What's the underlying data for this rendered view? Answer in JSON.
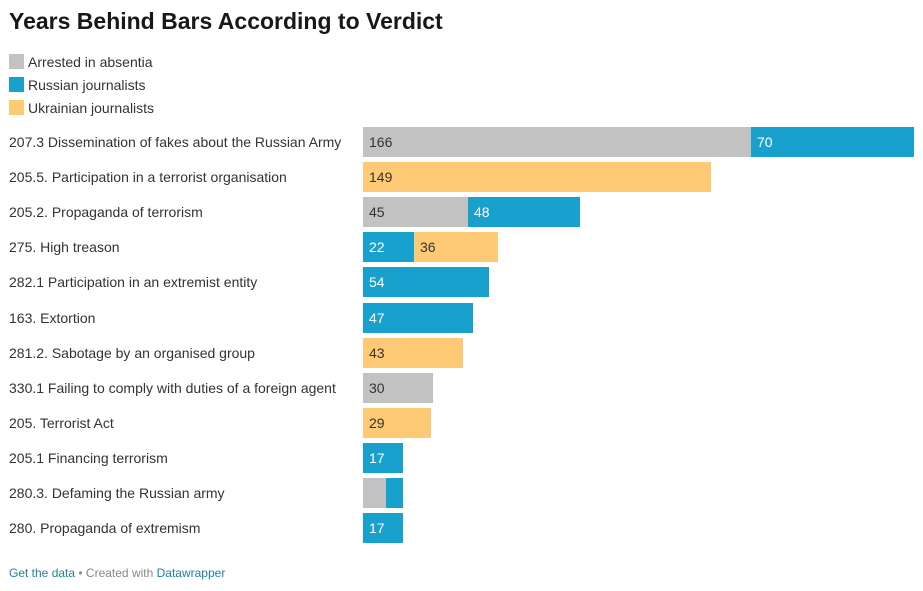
{
  "chart_data": {
    "type": "bar",
    "orientation": "horizontal",
    "stacked": true,
    "title": "Years Behind Bars According to Verdict",
    "xlim": [
      0,
      236
    ],
    "legend_position": "top-left",
    "series": [
      {
        "name": "Arrested in absentia",
        "color": "#c2c2c2",
        "text_color": "#333333"
      },
      {
        "name": "Russian journalists",
        "color": "#18a1cd",
        "text_color": "#ffffff"
      },
      {
        "name": "Ukrainian journalists",
        "color": "#ffca76",
        "text_color": "#333333"
      }
    ],
    "rows": [
      {
        "label": "207.3 Dissemination of fakes about the Russian Army",
        "segments": [
          {
            "series": 0,
            "value": 166,
            "label": "166"
          },
          {
            "series": 1,
            "value": 70,
            "label": "70"
          }
        ]
      },
      {
        "label": "205.5. Participation in a terrorist organisation",
        "segments": [
          {
            "series": 2,
            "value": 149,
            "label": "149"
          }
        ]
      },
      {
        "label": "205.2. Propaganda of terrorism",
        "segments": [
          {
            "series": 0,
            "value": 45,
            "label": "45"
          },
          {
            "series": 1,
            "value": 48,
            "label": "48"
          }
        ]
      },
      {
        "label": "275. High treason",
        "segments": [
          {
            "series": 1,
            "value": 22,
            "label": "22"
          },
          {
            "series": 2,
            "value": 36,
            "label": "36"
          }
        ]
      },
      {
        "label": "282.1 Participation in an extremist entity",
        "segments": [
          {
            "series": 1,
            "value": 54,
            "label": "54"
          }
        ]
      },
      {
        "label": "163. Extortion",
        "segments": [
          {
            "series": 1,
            "value": 47,
            "label": "47"
          }
        ]
      },
      {
        "label": "281.2. Sabotage by an organised group",
        "segments": [
          {
            "series": 2,
            "value": 43,
            "label": "43"
          }
        ]
      },
      {
        "label": "330.1 Failing to comply with duties of a foreign agent",
        "segments": [
          {
            "series": 0,
            "value": 30,
            "label": "30"
          }
        ]
      },
      {
        "label": "205. Terrorist Act",
        "segments": [
          {
            "series": 2,
            "value": 29,
            "label": "29"
          }
        ]
      },
      {
        "label": "205.1 Financing terrorism",
        "segments": [
          {
            "series": 1,
            "value": 17,
            "label": "17"
          }
        ]
      },
      {
        "label": "280.3. Defaming the Russian army",
        "segments": [
          {
            "series": 0,
            "value": 10,
            "label": ""
          },
          {
            "series": 1,
            "value": 7,
            "label": ""
          }
        ]
      },
      {
        "label": "280. Propaganda of extremism",
        "segments": [
          {
            "series": 1,
            "value": 17,
            "label": "17"
          }
        ]
      }
    ]
  },
  "footer": {
    "get_data": "Get the data",
    "separator": " • Created with ",
    "created_with": "Datawrapper"
  }
}
